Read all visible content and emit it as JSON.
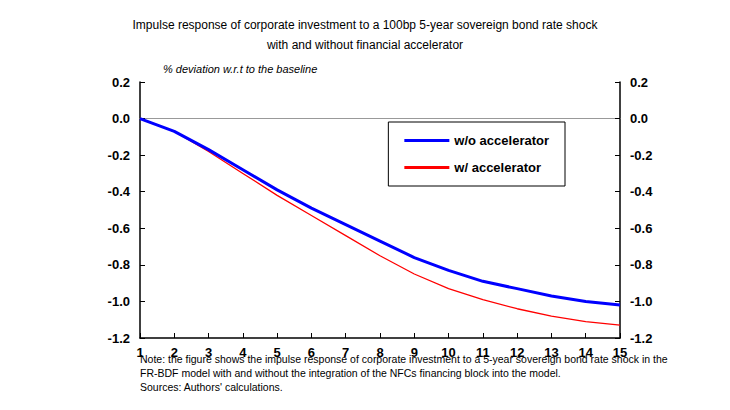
{
  "chart_data": {
    "type": "line",
    "title": "Impulse response of corporate investment to a 100bp 5-year sovereign bond rate shock",
    "subtitle": "with and without financial accelerator",
    "ylabel": "% deviation w.r.t to the baseline",
    "note": "Note: the figure shows the impulse response of corporate investment to a 5-year sovereign bond rate shock in the FR-BDF model with and without the integration of the NFCs financing block into the model.",
    "source": "Sources: Authors' calculations.",
    "categories": [
      "1",
      "2",
      "3",
      "4",
      "5",
      "6",
      "7",
      "8",
      "9",
      "10",
      "11",
      "12",
      "13",
      "14",
      "15"
    ],
    "series": [
      {
        "name": "w/o accelerator",
        "color": "#0000ff",
        "values": [
          0.0,
          -0.07,
          -0.17,
          -0.28,
          -0.39,
          -0.49,
          -0.58,
          -0.67,
          -0.76,
          -0.83,
          -0.89,
          -0.93,
          -0.97,
          -1.0,
          -1.02
        ]
      },
      {
        "name": "w/ accelerator",
        "color": "#ff0000",
        "values": [
          0.0,
          -0.07,
          -0.18,
          -0.3,
          -0.42,
          -0.53,
          -0.64,
          -0.75,
          -0.85,
          -0.93,
          -0.99,
          -1.04,
          -1.08,
          -1.11,
          -1.13
        ]
      }
    ],
    "ylim": [
      -1.2,
      0.2
    ],
    "yticks": [
      -1.2,
      {
        "value": -1,
        "label": "-1.0"
      },
      -0.8,
      -0.6,
      -0.4,
      -0.2,
      {
        "value": 0,
        "label": "0.0"
      },
      0.2
    ],
    "y2lim": [
      -1.2,
      0.2
    ],
    "y2ticks": [
      -1.2,
      {
        "value": -1,
        "label": "-1.0"
      },
      -0.8,
      -0.6,
      -0.4,
      -0.2,
      {
        "value": 0,
        "label": "0.0"
      },
      0.2
    ],
    "grid": false,
    "legend": "upper right"
  }
}
